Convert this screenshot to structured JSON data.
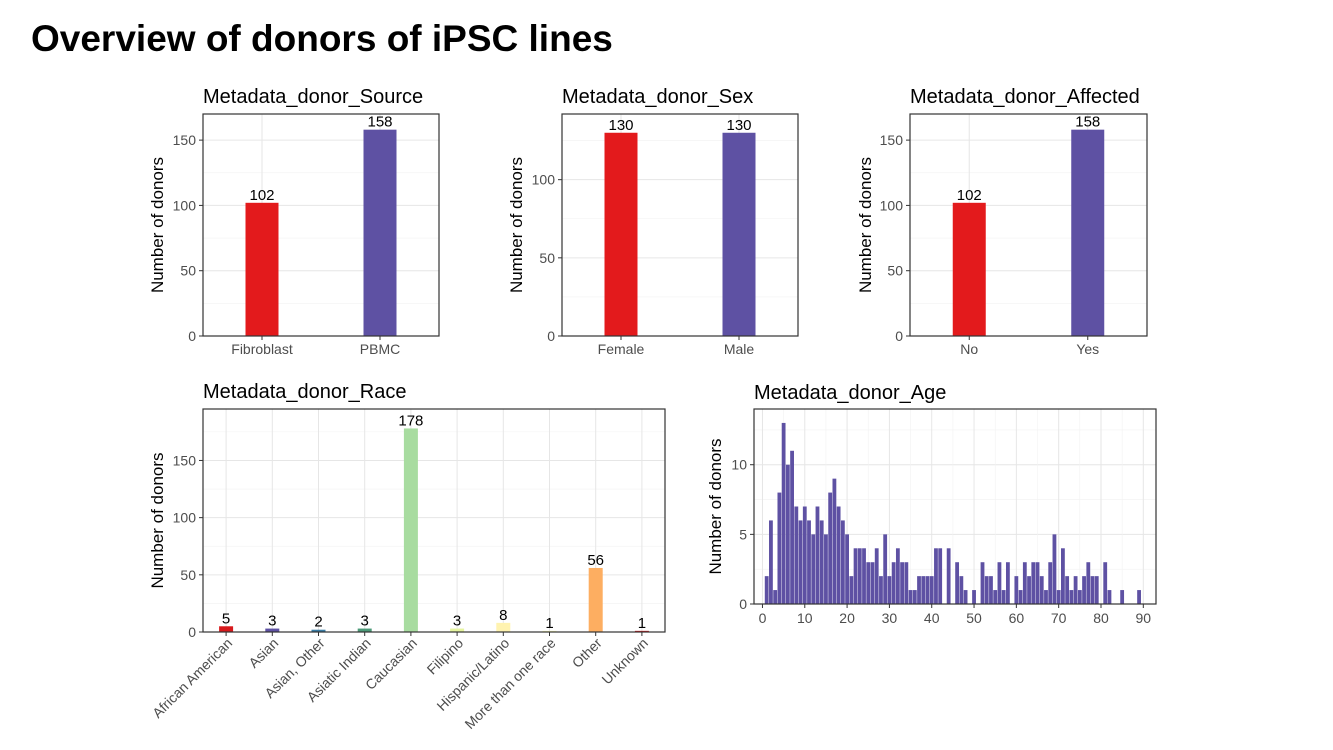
{
  "slide": {
    "title": "Overview of donors of iPSC lines"
  },
  "chart_data": [
    {
      "id": "source",
      "type": "bar",
      "title": "Metadata_donor_Source",
      "ylabel": "Number of donors",
      "xlabel": "",
      "categories": [
        "Fibroblast",
        "PBMC"
      ],
      "values": [
        102,
        158
      ],
      "labels": [
        "102",
        "158"
      ],
      "colors": [
        "#e31a1c",
        "#5e51a3"
      ],
      "ylim": [
        0,
        170
      ],
      "yticks": [
        0,
        50,
        100,
        150
      ]
    },
    {
      "id": "sex",
      "type": "bar",
      "title": "Metadata_donor_Sex",
      "ylabel": "Number of donors",
      "xlabel": "",
      "categories": [
        "Female",
        "Male"
      ],
      "values": [
        130,
        130
      ],
      "labels": [
        "130",
        "130"
      ],
      "colors": [
        "#e31a1c",
        "#5e51a3"
      ],
      "ylim": [
        0,
        142
      ],
      "yticks": [
        0,
        50,
        100
      ]
    },
    {
      "id": "affected",
      "type": "bar",
      "title": "Metadata_donor_Affected",
      "ylabel": "Number of donors",
      "xlabel": "",
      "categories": [
        "No",
        "Yes"
      ],
      "values": [
        102,
        158
      ],
      "labels": [
        "102",
        "158"
      ],
      "colors": [
        "#e31a1c",
        "#5e51a3"
      ],
      "ylim": [
        0,
        170
      ],
      "yticks": [
        0,
        50,
        100,
        150
      ]
    },
    {
      "id": "race",
      "type": "bar",
      "title": "Metadata_donor_Race",
      "ylabel": "Number of donors",
      "xlabel": "",
      "categories": [
        "African American",
        "Asian",
        "Asian, Other",
        "Asiatic Indian",
        "Caucasian",
        "Filipino",
        "Hispanic/Latino",
        "More than one race",
        "Other",
        "Unknown"
      ],
      "values": [
        5,
        3,
        2,
        3,
        178,
        3,
        8,
        1,
        56,
        1
      ],
      "labels": [
        "5",
        "3",
        "2",
        "3",
        "178",
        "3",
        "8",
        "1",
        "56",
        "1"
      ],
      "colors": [
        "#d7191c",
        "#5e51a3",
        "#3a7ca5",
        "#4c9a78",
        "#a8dca0",
        "#e6f5a0",
        "#fff3b0",
        "#ffffbf",
        "#fdae61",
        "#d7191c"
      ],
      "ylim": [
        0,
        195
      ],
      "yticks": [
        0,
        50,
        100,
        150
      ]
    },
    {
      "id": "age",
      "type": "bar",
      "title": "Metadata_donor_Age",
      "ylabel": "Number of donors",
      "xlabel": "",
      "color": "#5e51a3",
      "x": [
        1,
        2,
        3,
        4,
        5,
        6,
        7,
        8,
        9,
        10,
        11,
        12,
        13,
        14,
        15,
        16,
        17,
        18,
        19,
        20,
        21,
        22,
        23,
        24,
        25,
        26,
        27,
        28,
        29,
        30,
        31,
        32,
        33,
        34,
        35,
        36,
        37,
        38,
        39,
        40,
        41,
        42,
        44,
        46,
        47,
        48,
        50,
        52,
        53,
        54,
        55,
        56,
        57,
        58,
        60,
        61,
        62,
        63,
        64,
        65,
        66,
        67,
        68,
        69,
        70,
        71,
        72,
        73,
        74,
        75,
        76,
        77,
        78,
        79,
        81,
        82,
        85,
        89
      ],
      "values": [
        2,
        6,
        1,
        8,
        13,
        10,
        11,
        7,
        6,
        7,
        6,
        5,
        7,
        6,
        5,
        8,
        9,
        7,
        6,
        5,
        2,
        4,
        4,
        4,
        3,
        3,
        4,
        2,
        5,
        2,
        3,
        4,
        3,
        3,
        1,
        1,
        2,
        2,
        2,
        2,
        4,
        4,
        4,
        3,
        2,
        1,
        1,
        3,
        2,
        2,
        1,
        3,
        1,
        3,
        2,
        1,
        3,
        2,
        3,
        3,
        2,
        1,
        3,
        5,
        1,
        4,
        2,
        1,
        2,
        1,
        2,
        3,
        2,
        2,
        3,
        1,
        1,
        1
      ],
      "xlim": [
        -2,
        93
      ],
      "ylim": [
        0,
        14
      ],
      "xticks": [
        0,
        10,
        20,
        30,
        40,
        50,
        60,
        70,
        80,
        90
      ],
      "yticks": [
        0,
        5,
        10
      ]
    }
  ]
}
